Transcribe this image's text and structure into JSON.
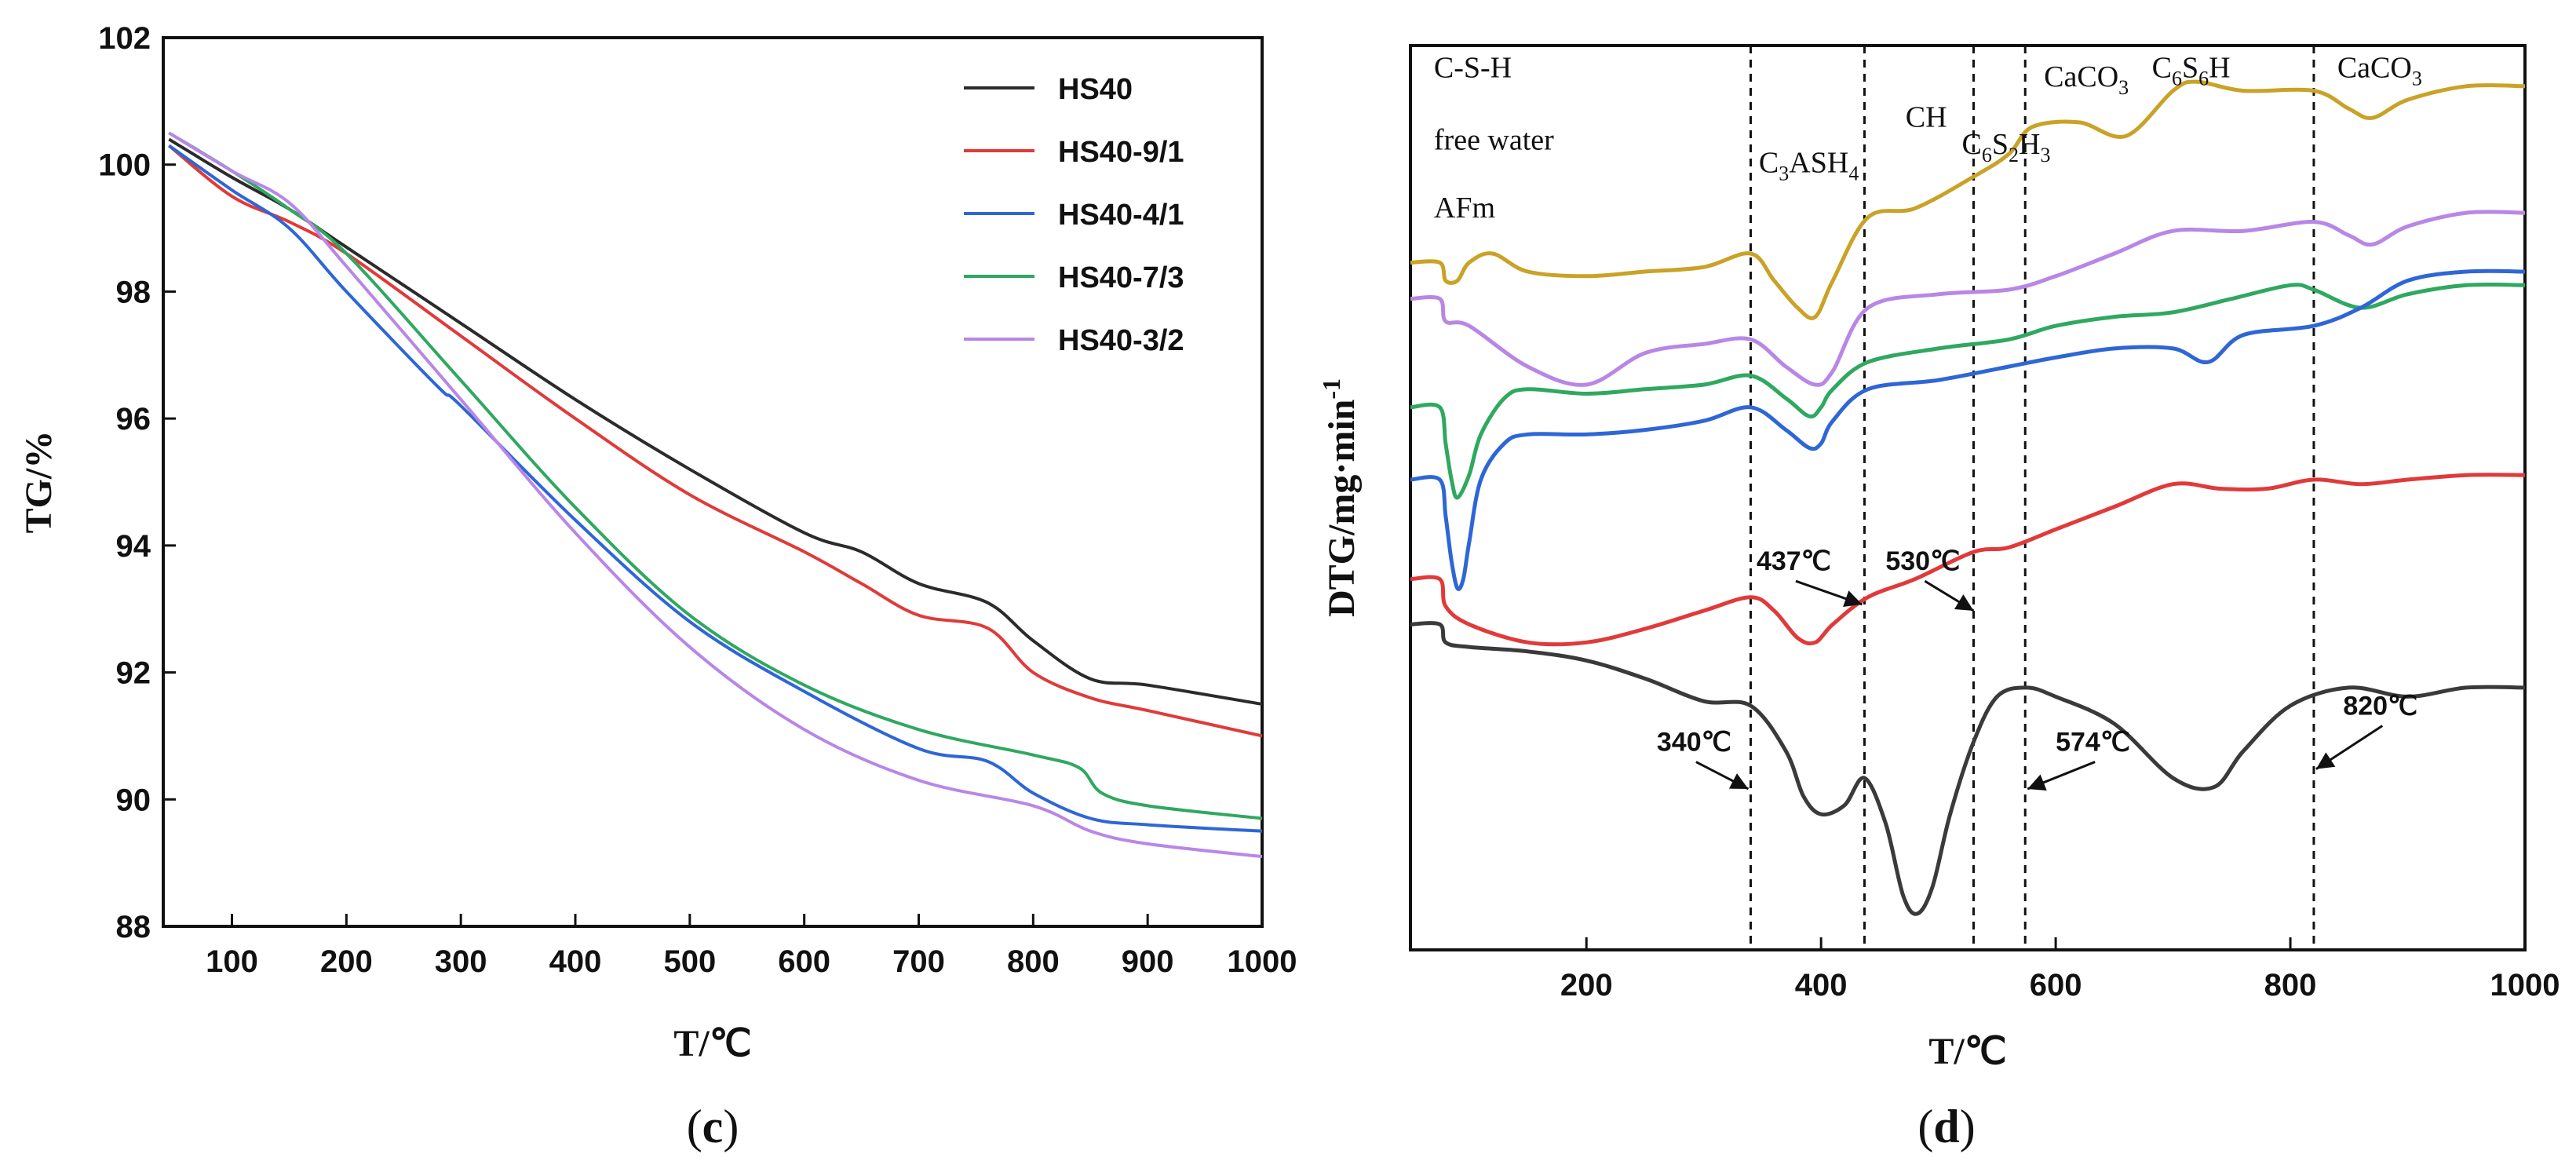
{
  "figure": {
    "panel_c_tag_letter": "c",
    "panel_d_tag_letter": "d"
  },
  "chart_data": [
    {
      "type": "line",
      "panel": "c",
      "title": "",
      "xlabel": "T/℃",
      "ylabel": "TG/%",
      "xlim": [
        40,
        1000
      ],
      "ylim": [
        88,
        102
      ],
      "xticks": [
        100,
        200,
        300,
        400,
        500,
        600,
        700,
        800,
        900,
        1000
      ],
      "yticks": [
        88,
        90,
        92,
        94,
        96,
        98,
        100,
        102
      ],
      "legend_position": "top-right",
      "series": [
        {
          "name": "HS40",
          "color": "#2b2b2b",
          "x": [
            45,
            100,
            150,
            200,
            300,
            400,
            500,
            600,
            650,
            700,
            760,
            800,
            850,
            900,
            1000
          ],
          "y": [
            100.4,
            99.8,
            99.3,
            98.7,
            97.5,
            96.3,
            95.2,
            94.2,
            93.9,
            93.4,
            93.1,
            92.5,
            91.9,
            91.8,
            91.5
          ]
        },
        {
          "name": "HS40-9/1",
          "color": "#e03a3a",
          "x": [
            45,
            100,
            150,
            200,
            300,
            400,
            500,
            600,
            650,
            700,
            760,
            800,
            850,
            900,
            1000
          ],
          "y": [
            100.3,
            99.5,
            99.1,
            98.6,
            97.3,
            96.0,
            94.8,
            93.9,
            93.4,
            92.9,
            92.7,
            92.0,
            91.6,
            91.4,
            91.0
          ]
        },
        {
          "name": "HS40-4/1",
          "color": "#2e66d6",
          "x": [
            45,
            100,
            150,
            200,
            280,
            300,
            400,
            500,
            600,
            700,
            760,
            800,
            850,
            900,
            1000
          ],
          "y": [
            100.3,
            99.6,
            99.0,
            98.0,
            96.5,
            96.2,
            94.4,
            92.8,
            91.7,
            90.8,
            90.6,
            90.1,
            89.7,
            89.6,
            89.5
          ]
        },
        {
          "name": "HS40-7/3",
          "color": "#2fa860",
          "x": [
            45,
            100,
            150,
            200,
            300,
            400,
            500,
            600,
            700,
            800,
            840,
            860,
            900,
            1000
          ],
          "y": [
            100.5,
            99.9,
            99.3,
            98.6,
            96.6,
            94.6,
            92.9,
            91.8,
            91.1,
            90.7,
            90.5,
            90.1,
            89.9,
            89.7
          ]
        },
        {
          "name": "HS40-3/2",
          "color": "#b887e6",
          "x": [
            45,
            100,
            150,
            200,
            300,
            400,
            500,
            600,
            700,
            800,
            850,
            900,
            1000
          ],
          "y": [
            100.5,
            99.9,
            99.4,
            98.4,
            96.3,
            94.2,
            92.4,
            91.1,
            90.3,
            89.9,
            89.5,
            89.3,
            89.1
          ]
        }
      ]
    },
    {
      "type": "line",
      "panel": "d",
      "title": "",
      "xlabel": "T/℃",
      "ylabel": "DTG/mg·min-1",
      "ylabel_parts": {
        "base": "DTG/mg·min",
        "superscript": "-1"
      },
      "xlim": [
        50,
        1000
      ],
      "ylim": [
        0,
        1
      ],
      "yticks_shown": false,
      "xticks": [
        200,
        400,
        600,
        800,
        1000
      ],
      "vertical_markers": [
        340,
        437,
        530,
        574,
        820
      ],
      "region_labels": [
        {
          "text": "C-S-H",
          "x": 70,
          "y": 0.965
        },
        {
          "text": "free water",
          "x": 70,
          "y": 0.885
        },
        {
          "text": "AFm",
          "x": 70,
          "y": 0.81
        },
        {
          "text": "C3ASH4",
          "base": "C",
          "sub1": "3",
          "mid": "ASH",
          "sub2": "4",
          "x": 347,
          "y": 0.86
        },
        {
          "text": "CH",
          "x": 472,
          "y": 0.91
        },
        {
          "text": "C6S2H3",
          "base": "C",
          "sub1": "6",
          "mid": "S",
          "sub2": "2",
          "tail": "H",
          "sub3": "3",
          "x": 520,
          "y": 0.88
        },
        {
          "text": "CaCO3",
          "base": "CaCO",
          "sub1": "3",
          "x": 590,
          "y": 0.955
        },
        {
          "text": "C6S6H",
          "base": "C",
          "sub1": "6",
          "mid": "S",
          "sub2": "6",
          "tail": "H",
          "x": 682,
          "y": 0.965
        },
        {
          "text": "CaCO3",
          "base": "CaCO",
          "sub1": "3",
          "x": 840,
          "y": 0.965
        }
      ],
      "temperature_annotations": [
        {
          "text": "340℃",
          "x": 260,
          "y": 0.22,
          "arrow_to": [
            338,
            0.178
          ]
        },
        {
          "text": "437℃",
          "x": 345,
          "y": 0.42,
          "arrow_to": [
            435,
            0.382
          ]
        },
        {
          "text": "530℃",
          "x": 455,
          "y": 0.42,
          "arrow_to": [
            530,
            0.375
          ]
        },
        {
          "text": "574℃",
          "x": 600,
          "y": 0.22,
          "arrow_to": [
            576,
            0.178
          ]
        },
        {
          "text": "820℃",
          "x": 845,
          "y": 0.26,
          "arrow_to": [
            822,
            0.2
          ]
        }
      ],
      "series": [
        {
          "name": "",
          "color": "#c9a227",
          "x": [
            50,
            75,
            80,
            90,
            100,
            120,
            150,
            200,
            250,
            300,
            340,
            360,
            380,
            395,
            410,
            440,
            480,
            530,
            560,
            580,
            620,
            660,
            700,
            720,
            760,
            820,
            850,
            870,
            900,
            950,
            1000
          ],
          "y": [
            0.76,
            0.76,
            0.74,
            0.74,
            0.76,
            0.77,
            0.75,
            0.745,
            0.75,
            0.755,
            0.77,
            0.74,
            0.71,
            0.7,
            0.74,
            0.81,
            0.82,
            0.855,
            0.88,
            0.91,
            0.915,
            0.9,
            0.95,
            0.96,
            0.95,
            0.95,
            0.93,
            0.92,
            0.94,
            0.955,
            0.955
          ]
        },
        {
          "name": "",
          "color": "#b887e6",
          "x": [
            50,
            75,
            80,
            100,
            150,
            200,
            250,
            300,
            340,
            370,
            395,
            410,
            440,
            500,
            560,
            600,
            650,
            700,
            760,
            820,
            850,
            870,
            900,
            950,
            1000
          ],
          "y": [
            0.72,
            0.72,
            0.695,
            0.69,
            0.645,
            0.625,
            0.66,
            0.67,
            0.675,
            0.645,
            0.625,
            0.64,
            0.71,
            0.725,
            0.73,
            0.745,
            0.77,
            0.795,
            0.795,
            0.805,
            0.79,
            0.78,
            0.8,
            0.815,
            0.815
          ]
        },
        {
          "name": "",
          "color": "#2fa860",
          "x": [
            50,
            75,
            80,
            85,
            90,
            100,
            110,
            130,
            150,
            200,
            250,
            300,
            340,
            370,
            390,
            400,
            410,
            440,
            500,
            560,
            600,
            650,
            700,
            750,
            800,
            820,
            860,
            900,
            950,
            1000
          ],
          "y": [
            0.6,
            0.6,
            0.56,
            0.52,
            0.5,
            0.525,
            0.57,
            0.61,
            0.62,
            0.615,
            0.62,
            0.625,
            0.635,
            0.61,
            0.59,
            0.6,
            0.62,
            0.65,
            0.665,
            0.675,
            0.69,
            0.7,
            0.705,
            0.72,
            0.735,
            0.73,
            0.71,
            0.725,
            0.735,
            0.735
          ]
        },
        {
          "name": "",
          "color": "#2e66d6",
          "x": [
            50,
            75,
            80,
            85,
            90,
            95,
            100,
            110,
            130,
            150,
            200,
            250,
            300,
            340,
            370,
            390,
            400,
            410,
            440,
            500,
            560,
            600,
            650,
            700,
            730,
            760,
            820,
            860,
            900,
            950,
            1000
          ],
          "y": [
            0.52,
            0.52,
            0.48,
            0.43,
            0.4,
            0.41,
            0.45,
            0.52,
            0.56,
            0.57,
            0.57,
            0.575,
            0.585,
            0.6,
            0.575,
            0.555,
            0.56,
            0.585,
            0.62,
            0.63,
            0.645,
            0.655,
            0.665,
            0.665,
            0.65,
            0.68,
            0.69,
            0.71,
            0.74,
            0.75,
            0.75
          ]
        },
        {
          "name": "",
          "color": "#e03a3a",
          "x": [
            50,
            75,
            80,
            100,
            150,
            200,
            250,
            300,
            340,
            360,
            380,
            395,
            410,
            440,
            480,
            530,
            560,
            600,
            650,
            700,
            740,
            780,
            820,
            860,
            900,
            950,
            1000
          ],
          "y": [
            0.41,
            0.41,
            0.38,
            0.36,
            0.34,
            0.34,
            0.355,
            0.375,
            0.39,
            0.375,
            0.345,
            0.34,
            0.36,
            0.39,
            0.41,
            0.44,
            0.445,
            0.465,
            0.49,
            0.515,
            0.51,
            0.51,
            0.52,
            0.515,
            0.52,
            0.525,
            0.525
          ]
        },
        {
          "name": "",
          "color": "#3a3a3a",
          "x": [
            50,
            75,
            80,
            100,
            150,
            200,
            250,
            300,
            340,
            370,
            385,
            400,
            420,
            437,
            455,
            470,
            482,
            495,
            510,
            530,
            550,
            575,
            600,
            650,
            700,
            735,
            760,
            800,
            850,
            900,
            950,
            1000
          ],
          "y": [
            0.36,
            0.36,
            0.34,
            0.335,
            0.33,
            0.32,
            0.3,
            0.275,
            0.27,
            0.22,
            0.17,
            0.15,
            0.16,
            0.19,
            0.14,
            0.06,
            0.04,
            0.07,
            0.15,
            0.23,
            0.28,
            0.29,
            0.28,
            0.25,
            0.19,
            0.18,
            0.22,
            0.27,
            0.29,
            0.28,
            0.29,
            0.29
          ]
        }
      ]
    }
  ]
}
